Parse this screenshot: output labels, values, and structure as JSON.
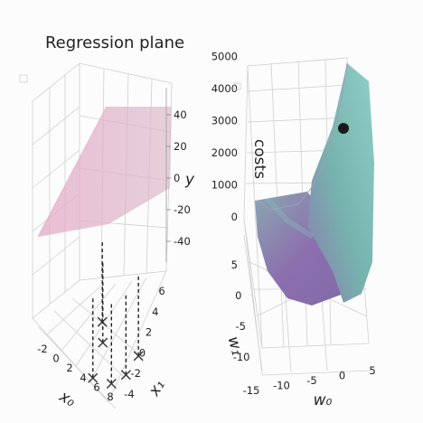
{
  "chart_data": [
    {
      "type": "scatter",
      "subtype": "3d regression plane",
      "title": "Regression plane",
      "xlabel": "x_0",
      "ylabel": "x_1",
      "zlabel": "y",
      "xticks": [
        "-2",
        "0",
        "2",
        "4",
        "6",
        "8"
      ],
      "yticks": [
        "-4",
        "-2",
        "0",
        "2",
        "4",
        "6"
      ],
      "zticks": [
        "-40",
        "-20",
        "0",
        "20",
        "40"
      ],
      "plane_color": "#e2a6bf",
      "marker_color": "#222222",
      "points": [
        {
          "x0": -1,
          "x1": 4.5,
          "y": -18
        },
        {
          "x0": 0.5,
          "x1": 3.5,
          "y": -26
        },
        {
          "x0": 1.5,
          "x1": 1,
          "y": -40
        },
        {
          "x0": 4,
          "x1": 2.5,
          "y": -44
        },
        {
          "x0": 5.5,
          "x1": 4,
          "y": -40
        },
        {
          "x0": 6.5,
          "x1": 5.5,
          "y": -30
        }
      ]
    },
    {
      "type": "surface",
      "subtype": "3d cost surface",
      "xlabel": "w_0",
      "ylabel": "w_1",
      "zlabel": "costs",
      "xticks": [
        "-15",
        "-10",
        "-5",
        "0",
        "5"
      ],
      "yticks": [
        "-10",
        "-5",
        "0",
        "5"
      ],
      "zticks": [
        "0",
        "1000",
        "2000",
        "3000",
        "4000",
        "5000"
      ],
      "surface_colors": [
        "#8c7bb1",
        "#7fb9b3"
      ],
      "marker": {
        "w0": 0,
        "w1": -2,
        "cost": 2900,
        "color": "#1a1a1a"
      }
    }
  ]
}
